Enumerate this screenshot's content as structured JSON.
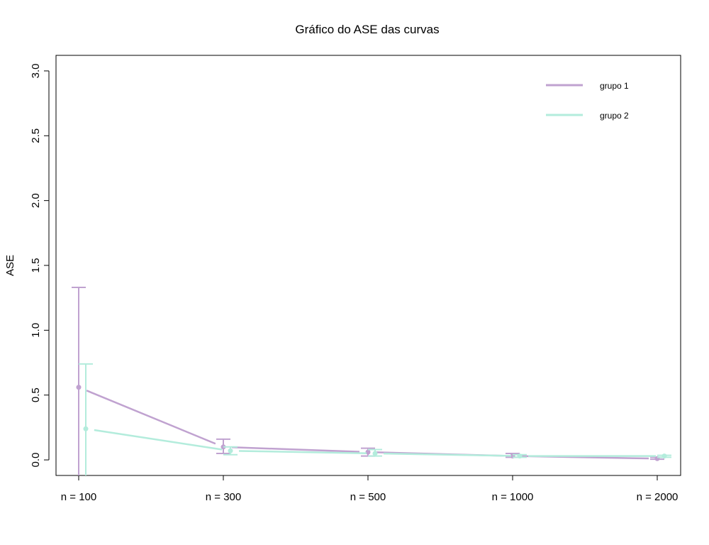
{
  "chart_data": {
    "type": "line",
    "title": "Gráfico do ASE das curvas",
    "xlabel": "",
    "ylabel": "ASE",
    "ylim": [
      -0.12,
      3.12
    ],
    "yticks": [
      0.0,
      0.5,
      1.0,
      1.5,
      2.0,
      2.5,
      3.0
    ],
    "ytick_labels": [
      "0.0",
      "0.5",
      "1.0",
      "1.5",
      "2.0",
      "2.5",
      "3.0"
    ],
    "categories": [
      "n = 100",
      "n = 300",
      "n = 500",
      "n = 1000",
      "n = 2000"
    ],
    "grid": false,
    "legend_position": "top-right",
    "error_bars": true,
    "series": [
      {
        "name": "grupo 1",
        "color": "#c0a2d0",
        "values": [
          0.56,
          0.1,
          0.06,
          0.03,
          0.01
        ],
        "upper": [
          1.33,
          0.16,
          0.09,
          0.05,
          0.02
        ],
        "lower": [
          -0.25,
          0.05,
          0.03,
          0.02,
          0.005
        ]
      },
      {
        "name": "grupo 2",
        "color": "#b3ecdc",
        "values": [
          0.24,
          0.07,
          0.05,
          0.03,
          0.03
        ],
        "upper": [
          0.74,
          0.1,
          0.08,
          0.04,
          0.035
        ],
        "lower": [
          -0.25,
          0.04,
          0.03,
          0.02,
          0.02
        ]
      }
    ]
  }
}
